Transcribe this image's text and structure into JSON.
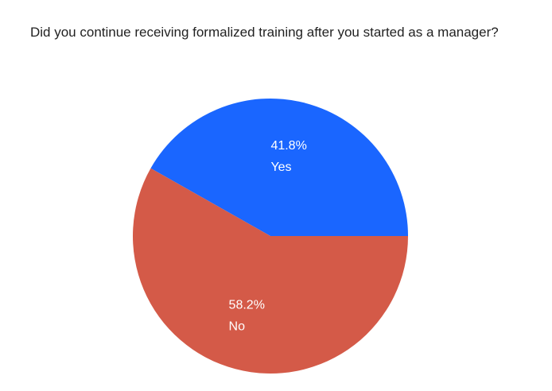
{
  "chart_data": {
    "type": "pie",
    "title": "Did you continue receiving formalized training after you started as a manager?",
    "categories": [
      "Yes",
      "No"
    ],
    "values": [
      41.8,
      58.2
    ],
    "value_labels": [
      "41.8%",
      "58.2%"
    ],
    "colors": [
      "#1a66ff",
      "#d45a48"
    ]
  }
}
